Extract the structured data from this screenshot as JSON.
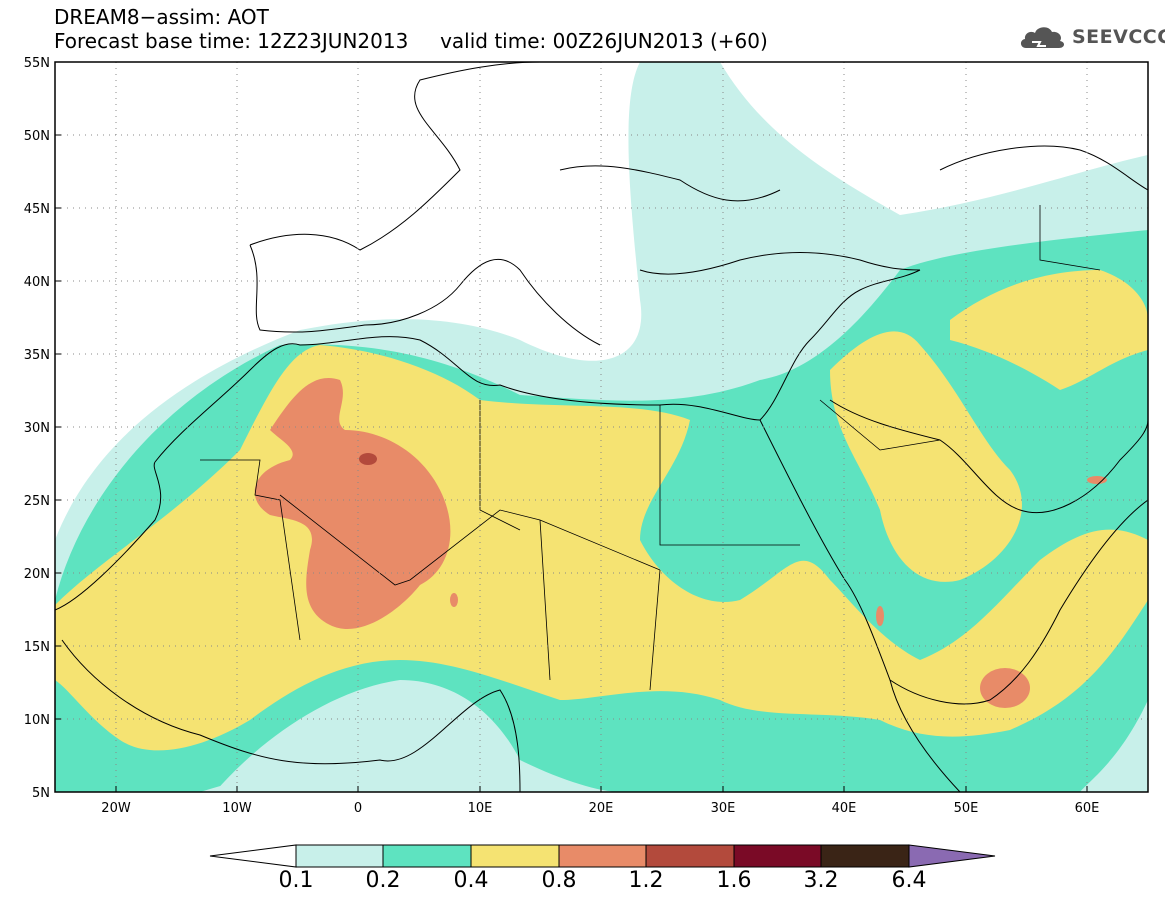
{
  "header": {
    "line1": "DREAM8−assim: AOT",
    "line2": "Forecast base time: 12Z23JUN2013     valid time: 00Z26JUN2013 (+60)"
  },
  "logo": {
    "text": "SEEVCCC",
    "icon": "cloud-logo-icon"
  },
  "map": {
    "projection": "lat-lon",
    "lon_range": [
      -25,
      65
    ],
    "lat_range": [
      5,
      55
    ],
    "grid": true,
    "lat_labels": [
      "55N",
      "50N",
      "45N",
      "40N",
      "35N",
      "30N",
      "25N",
      "20N",
      "15N",
      "10N",
      "5N"
    ],
    "lon_labels": [
      "20W",
      "10W",
      "0",
      "10E",
      "20E",
      "30E",
      "40E",
      "50E",
      "60E"
    ]
  },
  "colorbar": {
    "labels": [
      "0.1",
      "0.2",
      "0.4",
      "0.8",
      "1.2",
      "1.6",
      "3.2",
      "6.4"
    ],
    "colors": [
      "#ffffff",
      "#c8f0ea",
      "#5ee3c0",
      "#f5e372",
      "#e88b68",
      "#b34a3c",
      "#7a0a26",
      "#3a2416",
      "#8a6ab2"
    ]
  }
}
